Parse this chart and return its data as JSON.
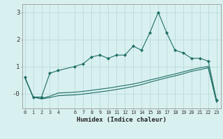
{
  "xlabel": "Humidex (Indice chaleur)",
  "background_color": "#d9f0f0",
  "grid_color": "#b8dada",
  "line_color": "#1e6e64",
  "x_values": [
    0,
    1,
    2,
    3,
    4,
    6,
    7,
    8,
    9,
    10,
    11,
    12,
    13,
    14,
    15,
    16,
    17,
    18,
    19,
    20,
    21,
    22,
    23
  ],
  "line1_y": [
    0.6,
    -0.13,
    -0.13,
    0.75,
    0.85,
    1.0,
    1.1,
    1.35,
    1.42,
    1.3,
    1.42,
    1.42,
    1.75,
    1.6,
    2.25,
    3.0,
    2.25,
    1.6,
    1.5,
    1.3,
    1.3,
    1.2,
    -0.25
  ],
  "line2_y": [
    0.6,
    -0.13,
    -0.18,
    -0.1,
    0.02,
    0.05,
    0.08,
    0.12,
    0.16,
    0.2,
    0.25,
    0.3,
    0.35,
    0.42,
    0.5,
    0.57,
    0.65,
    0.72,
    0.8,
    0.88,
    0.95,
    1.0,
    -0.32
  ],
  "line3_y": [
    0.6,
    -0.13,
    -0.2,
    -0.15,
    -0.08,
    -0.05,
    -0.02,
    0.02,
    0.06,
    0.1,
    0.15,
    0.2,
    0.26,
    0.33,
    0.42,
    0.5,
    0.58,
    0.65,
    0.73,
    0.82,
    0.88,
    0.95,
    -0.32
  ],
  "ylim": [
    -0.55,
    3.3
  ],
  "yticks": [
    0,
    1,
    2,
    3
  ],
  "ytick_labels": [
    "-0",
    "1",
    "2",
    "3"
  ],
  "xticks": [
    0,
    1,
    2,
    3,
    4,
    6,
    7,
    8,
    9,
    10,
    11,
    12,
    13,
    14,
    15,
    16,
    17,
    18,
    19,
    20,
    21,
    22,
    23
  ],
  "xlim": [
    -0.3,
    23.5
  ]
}
